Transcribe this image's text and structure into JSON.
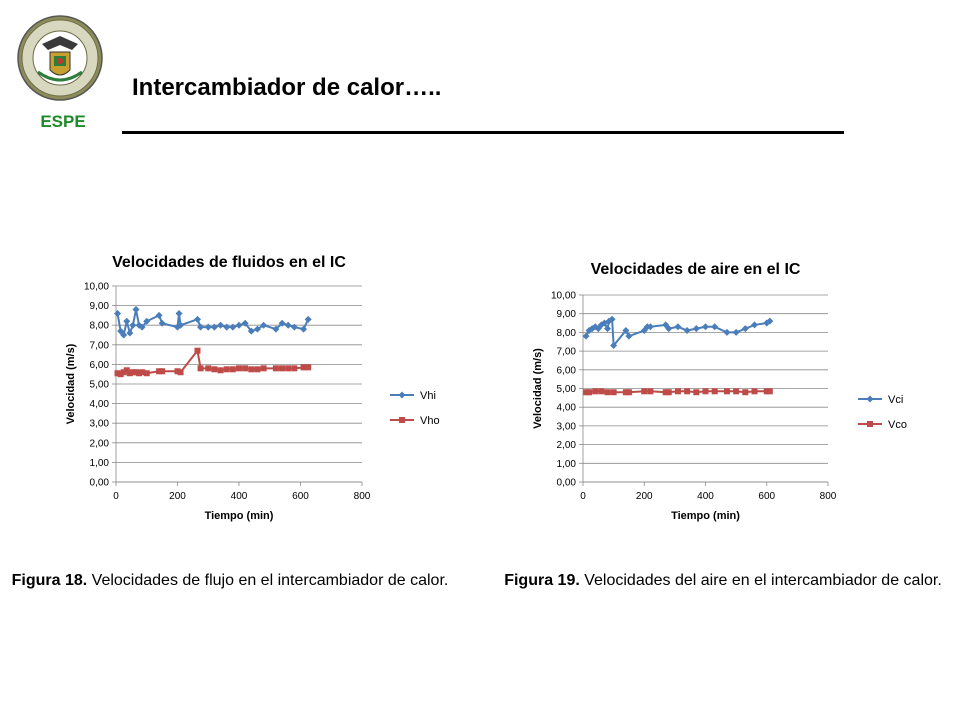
{
  "header": {
    "org": "ESPE",
    "title": "Intercambiador de calor….."
  },
  "chart_data": [
    {
      "type": "line",
      "title": "Velocidades de fluidos en el IC",
      "xlabel": "Tiempo (min)",
      "ylabel": "Velocidad (m/s)",
      "xlim": [
        0,
        800
      ],
      "ylim": [
        0,
        10
      ],
      "x_ticks": [
        "0",
        "200",
        "400",
        "600",
        "800"
      ],
      "y_ticks": [
        "0,00",
        "1,00",
        "2,00",
        "3,00",
        "4,00",
        "5,00",
        "6,00",
        "7,00",
        "8,00",
        "9,00",
        "10,00"
      ],
      "grid": "horizontal",
      "legend": "right",
      "series": [
        {
          "name": "Vhi",
          "color": "#4a7ebb",
          "marker": "diamond",
          "x": [
            5,
            15,
            25,
            35,
            45,
            55,
            65,
            75,
            85,
            100,
            140,
            150,
            200,
            205,
            210,
            265,
            275,
            300,
            320,
            340,
            360,
            380,
            400,
            420,
            440,
            460,
            480,
            520,
            540,
            560,
            580,
            610,
            625
          ],
          "y": [
            8.6,
            7.7,
            7.5,
            8.2,
            7.6,
            8.0,
            8.8,
            8.0,
            7.9,
            8.2,
            8.5,
            8.1,
            7.9,
            8.6,
            8.0,
            8.3,
            7.9,
            7.9,
            7.9,
            8.0,
            7.9,
            7.9,
            8.0,
            8.1,
            7.7,
            7.8,
            8.0,
            7.8,
            8.1,
            8.0,
            7.9,
            7.8,
            8.3
          ]
        },
        {
          "name": "Vho",
          "color": "#be4b48",
          "marker": "square",
          "x": [
            5,
            15,
            25,
            35,
            45,
            55,
            65,
            75,
            85,
            100,
            140,
            150,
            200,
            210,
            265,
            275,
            300,
            320,
            340,
            360,
            380,
            400,
            420,
            440,
            460,
            480,
            520,
            540,
            560,
            580,
            610,
            625
          ],
          "y": [
            5.55,
            5.5,
            5.6,
            5.7,
            5.55,
            5.6,
            5.6,
            5.55,
            5.6,
            5.55,
            5.65,
            5.65,
            5.65,
            5.6,
            6.7,
            5.8,
            5.8,
            5.75,
            5.7,
            5.75,
            5.75,
            5.8,
            5.8,
            5.75,
            5.75,
            5.8,
            5.8,
            5.8,
            5.8,
            5.8,
            5.85,
            5.85
          ]
        }
      ]
    },
    {
      "type": "line",
      "title": "Velocidades de aire en el IC",
      "xlabel": "Tiempo (min)",
      "ylabel": "Velocidad (m/s)",
      "xlim": [
        0,
        800
      ],
      "ylim": [
        0,
        10
      ],
      "x_ticks": [
        "0",
        "200",
        "400",
        "600",
        "800"
      ],
      "y_ticks": [
        "0,00",
        "1,00",
        "2,00",
        "3,00",
        "4,00",
        "5,00",
        "6,00",
        "7,00",
        "8,00",
        "9,00",
        "10,00"
      ],
      "grid": "horizontal",
      "legend": "right",
      "series": [
        {
          "name": "Vci",
          "color": "#4a7ebb",
          "marker": "diamond",
          "x": [
            10,
            20,
            30,
            40,
            50,
            60,
            70,
            80,
            85,
            95,
            100,
            140,
            150,
            200,
            210,
            220,
            270,
            280,
            310,
            340,
            370,
            400,
            430,
            470,
            500,
            530,
            560,
            600,
            610
          ],
          "y": [
            7.8,
            8.1,
            8.2,
            8.3,
            8.2,
            8.4,
            8.5,
            8.2,
            8.6,
            8.7,
            7.3,
            8.1,
            7.8,
            8.1,
            8.3,
            8.3,
            8.4,
            8.2,
            8.3,
            8.1,
            8.2,
            8.3,
            8.3,
            8.0,
            8.0,
            8.2,
            8.4,
            8.5,
            8.6
          ]
        },
        {
          "name": "Vco",
          "color": "#be4b48",
          "marker": "square",
          "x": [
            10,
            20,
            40,
            60,
            80,
            100,
            140,
            150,
            200,
            220,
            270,
            280,
            310,
            340,
            370,
            400,
            430,
            470,
            500,
            530,
            560,
            600,
            610
          ],
          "y": [
            4.8,
            4.8,
            4.85,
            4.85,
            4.8,
            4.8,
            4.8,
            4.8,
            4.85,
            4.85,
            4.8,
            4.8,
            4.85,
            4.85,
            4.8,
            4.85,
            4.85,
            4.85,
            4.85,
            4.8,
            4.85,
            4.85,
            4.85
          ]
        }
      ]
    }
  ],
  "captions": [
    {
      "label": "Figura 18.",
      "text": " Velocidades de flujo en el intercambiador de calor."
    },
    {
      "label": "Figura 19.",
      "text": " Velocidades del aire en el intercambiador de calor."
    }
  ]
}
